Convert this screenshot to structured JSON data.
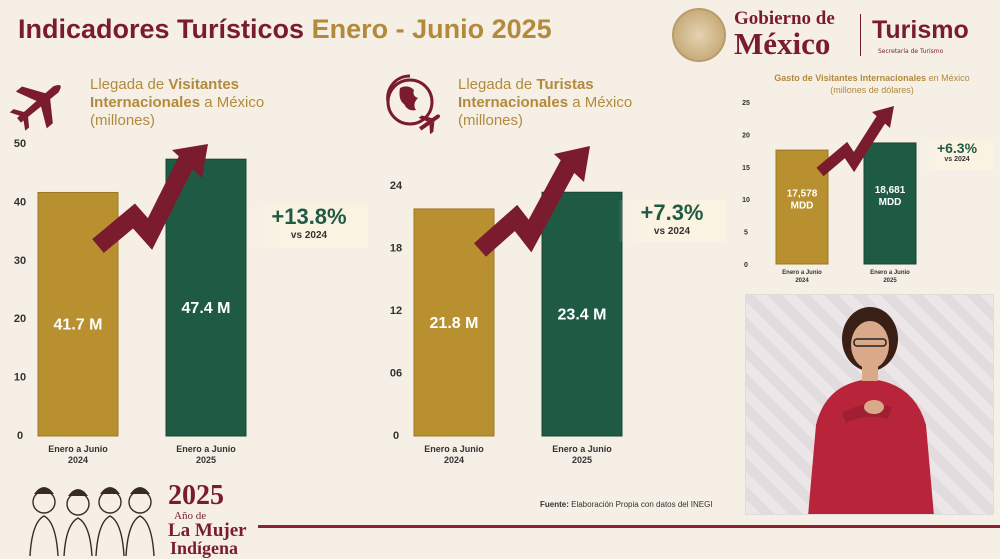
{
  "header": {
    "title_main": "Indicadores Turísticos",
    "title_period": "Enero - Junio 2025"
  },
  "gov_logo": {
    "line1": "Gobierno de",
    "line2": "México",
    "dept": "Turismo",
    "dept_sub": "Secretaría de Turismo"
  },
  "chart1": {
    "head_prefix": "Llegada de ",
    "head_bold": "Visitantes",
    "head_line2_bold": "Internacionales",
    "head_line2_rest": " a México",
    "head_line3": "(millones)",
    "change": "+13.8%",
    "vs": "vs 2024"
  },
  "chart2": {
    "head_prefix": "Llegada de ",
    "head_bold": "Turistas",
    "head_line2_bold": "Internacionales",
    "head_line2_rest": " a México",
    "head_line3": "(millones)",
    "change": "+7.3%",
    "vs": "vs 2024"
  },
  "chart3": {
    "head_line1_bold": "Gasto de Visitantes Internacionales",
    "head_line1_rest": " en México",
    "head_line2": "(millones de dólares)",
    "change": "+6.3%",
    "vs": "vs 2024"
  },
  "chart_data": [
    {
      "type": "bar",
      "title": "Llegada de Visitantes Internacionales a México (millones)",
      "categories": [
        "Enero a Junio|2024",
        "Enero a Junio|2025"
      ],
      "values": [
        41.7,
        47.4
      ],
      "value_labels": [
        "41.7 M",
        "47.4 M"
      ],
      "yticks": [
        "0",
        "10",
        "20",
        "30",
        "40",
        "50"
      ],
      "ylim": [
        0,
        50
      ],
      "colors": [
        "#b8902f",
        "#1f5a44"
      ]
    },
    {
      "type": "bar",
      "title": "Llegada de Turistas Internacionales a México (millones)",
      "categories": [
        "Enero a Junio|2024",
        "Enero a Junio|2025"
      ],
      "values": [
        21.8,
        23.4
      ],
      "value_labels": [
        "21.8 M",
        "23.4 M"
      ],
      "yticks": [
        "0",
        "06",
        "12",
        "18",
        "24"
      ],
      "ylim": [
        0,
        24
      ],
      "colors": [
        "#b8902f",
        "#1f5a44"
      ]
    },
    {
      "type": "bar",
      "title": "Gasto de Visitantes Internacionales en México (millones de dólares)",
      "categories": [
        "Enero a Junio|2024",
        "Enero a Junio|2025"
      ],
      "values": [
        17578,
        18681
      ],
      "value_labels": [
        "17,578|MDD",
        "18,681|MDD"
      ],
      "yticks": [
        "0",
        "5",
        "10",
        "15",
        "20",
        "25"
      ],
      "ylim": [
        0,
        25000
      ],
      "colors": [
        "#b8902f",
        "#1f5a44"
      ]
    }
  ],
  "footer": {
    "fuente_label": "Fuente:",
    "fuente_text": " Elaboración Propia con datos del INEGI"
  },
  "mujer": {
    "year": "2025",
    "line1": "Año de",
    "line2": "La Mujer",
    "line3": "Indígena"
  },
  "colors": {
    "maroon": "#7a1c2e",
    "gold": "#b8902f",
    "green": "#1f5a44",
    "background": "#f5efe6"
  }
}
